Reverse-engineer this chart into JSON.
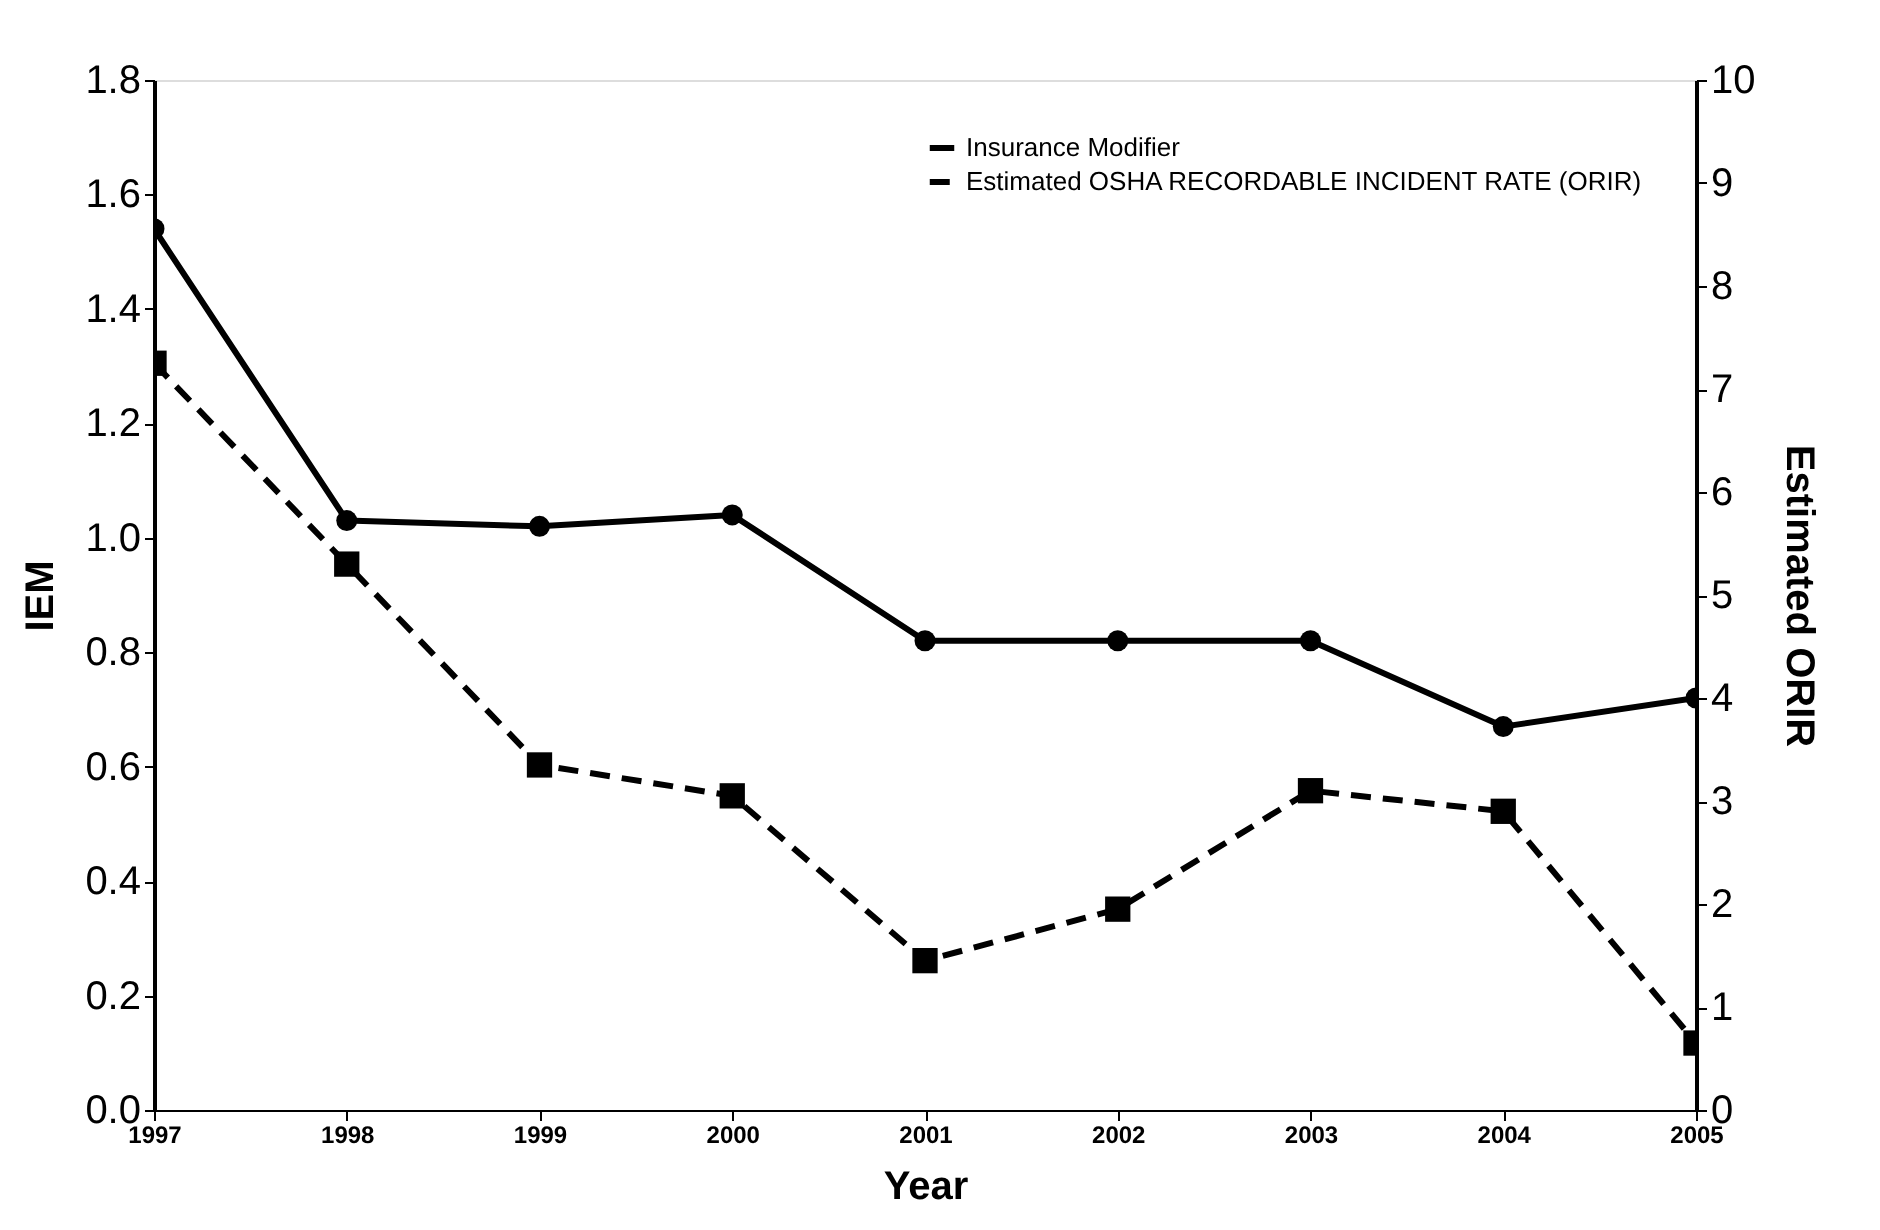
{
  "chart_data": {
    "type": "line",
    "x": [
      1997,
      1998,
      1999,
      2000,
      2001,
      2002,
      2003,
      2004,
      2005
    ],
    "xlim": [
      1997,
      2005
    ],
    "xticks": [
      1997,
      1998,
      1999,
      2000,
      2001,
      2002,
      2003,
      2004,
      2005
    ],
    "xlabel": "Year",
    "ylabel": "IEM",
    "y2label": "Estimated ORIR",
    "ylim": [
      0,
      1.8
    ],
    "yticks": [
      {
        "value": 0,
        "label": "0.0"
      },
      0.2,
      0.4,
      0.6,
      0.8,
      {
        "value": 1,
        "label": "1.0"
      },
      1.2,
      1.4,
      1.6,
      1.8
    ],
    "y2lim": [
      0,
      10
    ],
    "y2ticks": [
      0,
      1,
      2,
      3,
      4,
      5,
      6,
      7,
      8,
      9,
      10
    ],
    "grid": false,
    "legend": "top right",
    "series": [
      {
        "name": "Insurance Modifier",
        "color": "#000000",
        "marker": "circle",
        "line_style": "solid",
        "values": [
          1.54,
          1.03,
          1.02,
          1.04,
          0.82,
          0.82,
          0.82,
          0.67,
          0.72
        ]
      },
      {
        "name": "Estimated OSHA RECORDABLE INCIDENT RATE (ORIR)",
        "color": "#000000",
        "marker": "square",
        "line_style": "dashed",
        "axis": "y2",
        "values": [
          7.25,
          5.3,
          3.35,
          3.05,
          1.45,
          1.95,
          3.1,
          2.9,
          0.65
        ]
      }
    ]
  }
}
